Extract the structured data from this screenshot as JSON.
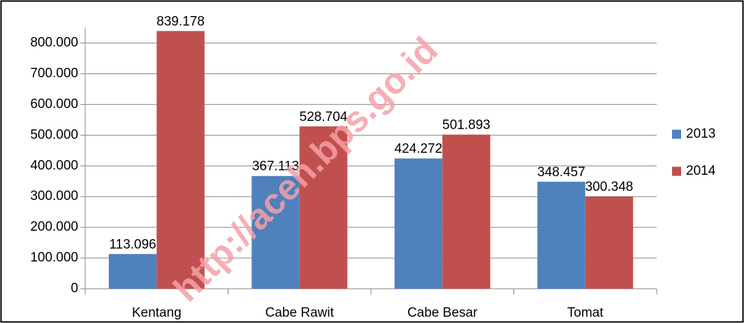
{
  "chart_data": {
    "type": "bar",
    "categories": [
      "Kentang",
      "Cabe Rawit",
      "Cabe Besar",
      "Tomat"
    ],
    "series": [
      {
        "name": "2013",
        "color": "#4f81bd",
        "values": [
          113096,
          367113,
          424272,
          348457
        ],
        "value_labels": [
          "113.096",
          "367.113",
          "424.272",
          "348.457"
        ]
      },
      {
        "name": "2014",
        "color": "#c0504d",
        "values": [
          839178,
          528704,
          501893,
          300348
        ],
        "value_labels": [
          "839.178",
          "528.704",
          "501.893",
          "300.348"
        ]
      }
    ],
    "ylim": [
      0,
      850000
    ],
    "yticks": [
      {
        "value": 0,
        "label": "0"
      },
      {
        "value": 100000,
        "label": "100.000"
      },
      {
        "value": 200000,
        "label": "200.000"
      },
      {
        "value": 300000,
        "label": "300.000"
      },
      {
        "value": 400000,
        "label": "400.000"
      },
      {
        "value": 500000,
        "label": "500.000"
      },
      {
        "value": 600000,
        "label": "600.000"
      },
      {
        "value": 700000,
        "label": "700.000"
      },
      {
        "value": 800000,
        "label": "800.000"
      }
    ],
    "grid": true,
    "legend": "right",
    "watermark": "http://aceh.bps.go.id"
  }
}
